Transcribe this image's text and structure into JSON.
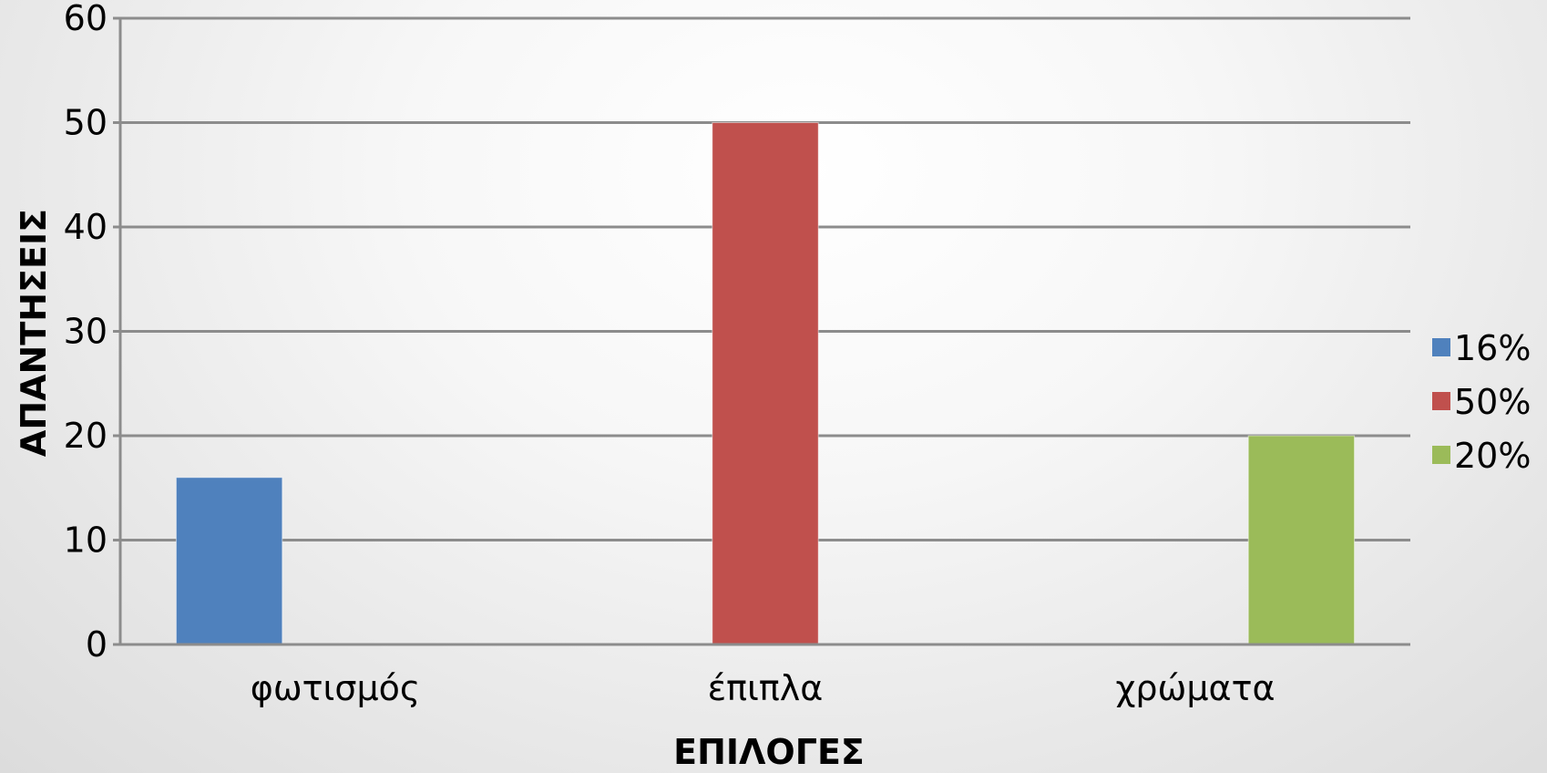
{
  "chart_data": {
    "type": "bar",
    "categories": [
      "φωτισμός",
      "έπιπλα",
      "χρώματα"
    ],
    "series": [
      {
        "name": "16%",
        "values": [
          16,
          null,
          null
        ],
        "color": "#4f81bd"
      },
      {
        "name": "50%",
        "values": [
          null,
          50,
          null
        ],
        "color": "#c0504d"
      },
      {
        "name": "20%",
        "values": [
          null,
          null,
          20
        ],
        "color": "#9bbb59"
      }
    ],
    "xlabel": "ΕΠΙΛΟΓΕΣ",
    "ylabel": "ΑΠΑΝΤΗΣΕΙΣ",
    "ylim": [
      0,
      60
    ],
    "yticks": [
      0,
      10,
      20,
      30,
      40,
      50,
      60
    ],
    "grid": true,
    "legend_position": "right"
  }
}
